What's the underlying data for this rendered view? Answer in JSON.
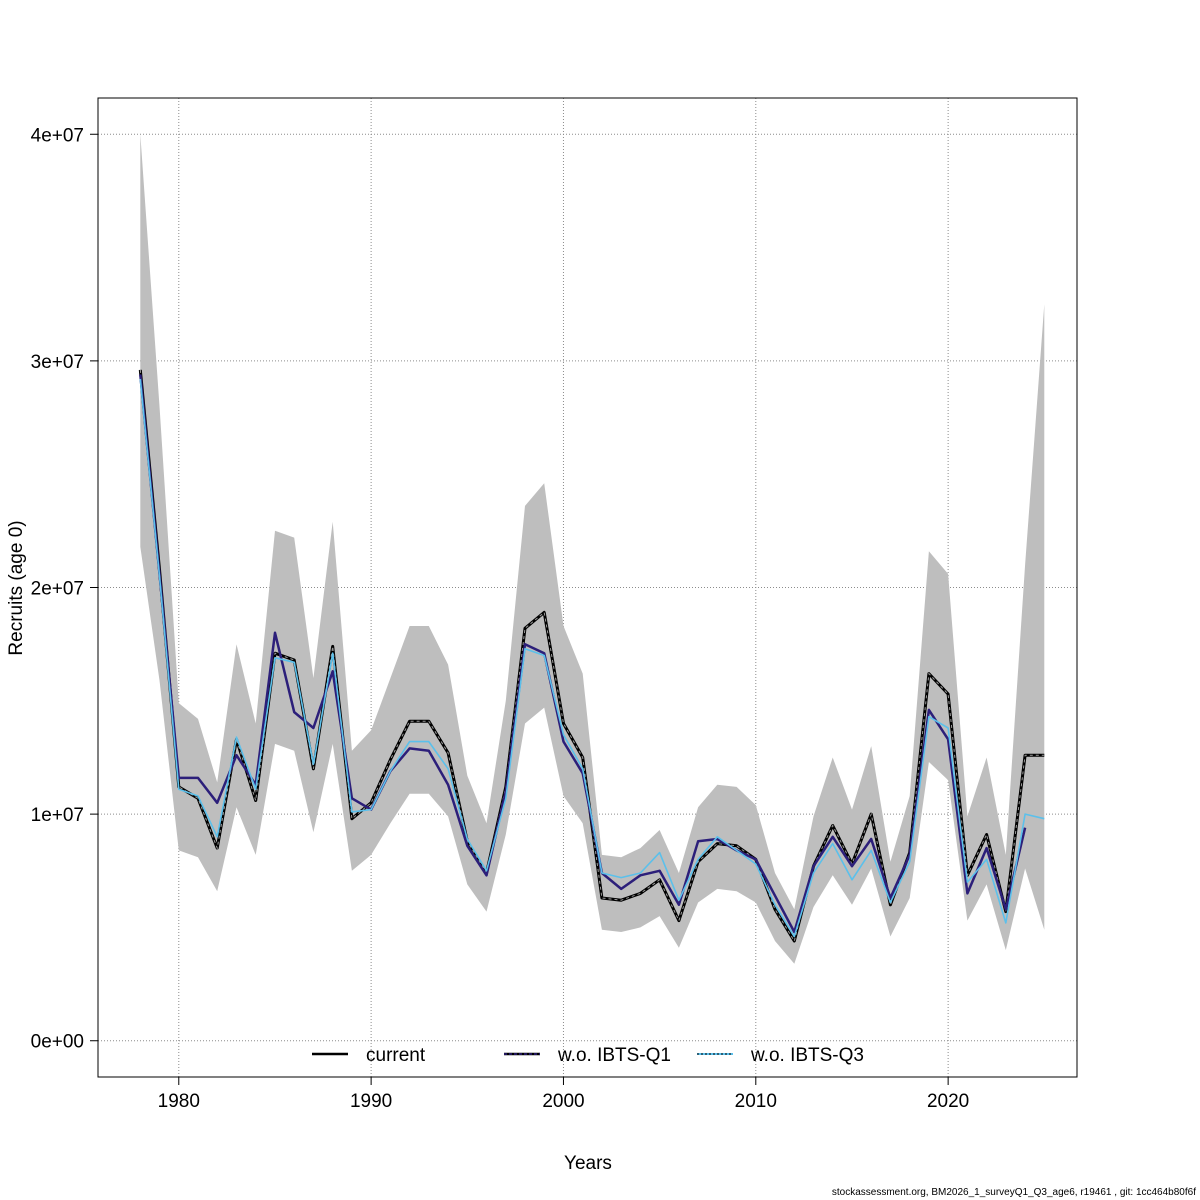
{
  "chart_data": {
    "type": "line",
    "title": "",
    "xlabel": "Years",
    "ylabel": "Recruits (age 0)",
    "xlim": [
      1975.8,
      2026.7
    ],
    "ylim": [
      -1600000,
      41600000
    ],
    "x_ticks": [
      1980,
      1990,
      2000,
      2010,
      2020
    ],
    "x_tick_labels": [
      "1980",
      "1990",
      "2000",
      "2010",
      "2020"
    ],
    "y_ticks": [
      0,
      10000000,
      20000000,
      30000000,
      40000000
    ],
    "y_tick_labels": [
      "0e+00",
      "1e+07",
      "2e+07",
      "3e+07",
      "4e+07"
    ],
    "grid": true,
    "legend_position": "bottom",
    "colors": {
      "band": "#bebebe",
      "current": "#000000",
      "q1": "#2c1f7a",
      "q3": "#5bc0eb"
    },
    "x": [
      1978,
      1979,
      1980,
      1981,
      1982,
      1983,
      1984,
      1985,
      1986,
      1987,
      1988,
      1989,
      1990,
      1991,
      1992,
      1993,
      1994,
      1995,
      1996,
      1997,
      1998,
      1999,
      2000,
      2001,
      2002,
      2003,
      2004,
      2005,
      2006,
      2007,
      2008,
      2009,
      2010,
      2011,
      2012,
      2013,
      2014,
      2015,
      2016,
      2017,
      2018,
      2019,
      2020,
      2021,
      2022,
      2023,
      2024,
      2025
    ],
    "band": {
      "upper": [
        40000000,
        28000000,
        14900000,
        14200000,
        11400000,
        17500000,
        14000000,
        22500000,
        22200000,
        16000000,
        22900000,
        12800000,
        13700000,
        16000000,
        18300000,
        18300000,
        16600000,
        11700000,
        9600000,
        15000000,
        23600000,
        24600000,
        18300000,
        16200000,
        8200000,
        8100000,
        8500000,
        9300000,
        7400000,
        10300000,
        11300000,
        11200000,
        10400000,
        7400000,
        5800000,
        9900000,
        12500000,
        10200000,
        13000000,
        7900000,
        10800000,
        21600000,
        20600000,
        9900000,
        12500000,
        8200000,
        21000000,
        32500000
      ],
      "lower": [
        21800000,
        15900000,
        8400000,
        8100000,
        6600000,
        10300000,
        8200000,
        13100000,
        12800000,
        9200000,
        13100000,
        7500000,
        8200000,
        9600000,
        10900000,
        10900000,
        9900000,
        6900000,
        5700000,
        9100000,
        14000000,
        14700000,
        10800000,
        9600000,
        4900000,
        4800000,
        5000000,
        5500000,
        4100000,
        6100000,
        6700000,
        6600000,
        6100000,
        4400000,
        3400000,
        5900000,
        7300000,
        6000000,
        7600000,
        4600000,
        6300000,
        12300000,
        11500000,
        5300000,
        6900000,
        4000000,
        7600000,
        4900000
      ]
    },
    "series": [
      {
        "name": "current",
        "values": [
          29600000,
          20800000,
          11200000,
          10700000,
          8500000,
          13300000,
          10600000,
          17100000,
          16800000,
          12000000,
          17400000,
          9800000,
          10500000,
          12400000,
          14100000,
          14100000,
          12700000,
          8800000,
          7400000,
          11200000,
          18200000,
          18900000,
          14000000,
          12500000,
          6300000,
          6200000,
          6500000,
          7100000,
          5300000,
          7900000,
          8700000,
          8600000,
          8000000,
          5800000,
          4400000,
          7700000,
          9500000,
          7800000,
          10000000,
          6000000,
          8300000,
          16200000,
          15300000,
          7300000,
          9100000,
          5700000,
          12600000,
          12600000
        ]
      },
      {
        "name": "w.o. IBTS-Q1",
        "values": [
          29400000,
          20600000,
          11600000,
          11600000,
          10500000,
          12600000,
          11300000,
          18000000,
          14500000,
          13800000,
          16300000,
          10700000,
          10200000,
          11900000,
          12900000,
          12800000,
          11300000,
          8600000,
          7300000,
          11000000,
          17500000,
          17100000,
          13200000,
          11800000,
          7400000,
          6700000,
          7300000,
          7500000,
          6000000,
          8800000,
          8900000,
          8400000,
          8000000,
          6400000,
          4800000,
          7700000,
          9000000,
          7700000,
          8900000,
          6300000,
          8200000,
          14600000,
          13300000,
          6500000,
          8500000,
          5800000,
          9400000,
          null
        ]
      },
      {
        "name": "w.o. IBTS-Q3",
        "values": [
          29200000,
          20500000,
          11100000,
          10800000,
          9000000,
          13400000,
          11100000,
          16900000,
          16700000,
          12200000,
          17100000,
          10100000,
          10200000,
          11900000,
          13200000,
          13200000,
          12000000,
          8900000,
          7500000,
          10700000,
          17300000,
          17000000,
          13500000,
          12000000,
          7400000,
          7200000,
          7400000,
          8300000,
          6200000,
          8000000,
          9000000,
          8400000,
          7800000,
          6000000,
          4600000,
          7400000,
          8700000,
          7100000,
          8400000,
          6100000,
          7900000,
          14300000,
          13800000,
          7000000,
          8000000,
          5200000,
          10000000,
          9800000
        ]
      }
    ]
  },
  "footer": {
    "text": "stockassessment.org, BM2026_1_surveyQ1_Q3_age6, r19461 , git: 1cc464b80f6f"
  }
}
